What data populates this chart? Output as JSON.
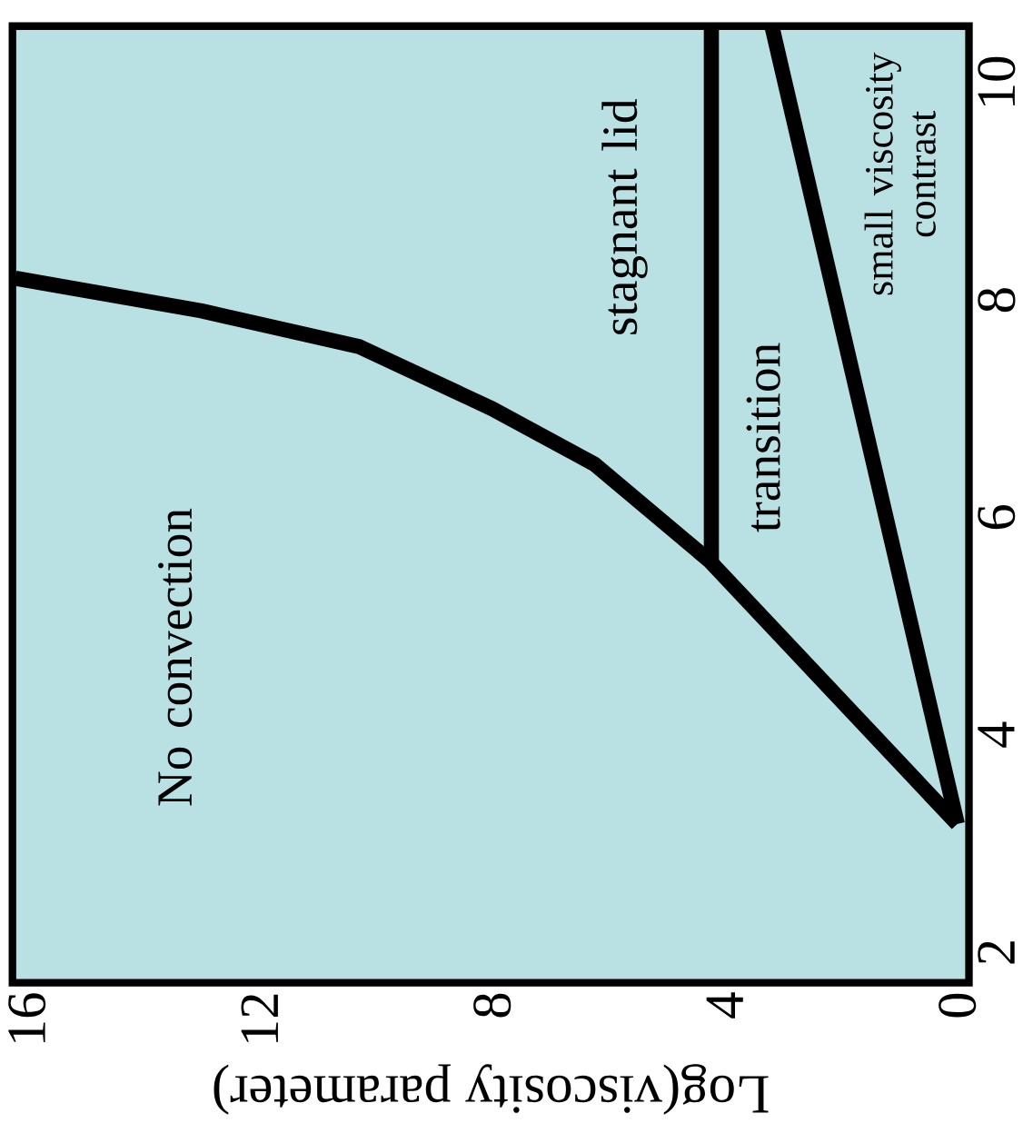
{
  "chart_data": {
    "type": "line",
    "xlabel": "Log(viscosity parameter)",
    "xlim": [
      16.25,
      -0.2
    ],
    "xticks": [
      0,
      4,
      8,
      12,
      16
    ],
    "ylim": [
      1.72,
      10.52
    ],
    "yticks": [
      2,
      4,
      6,
      8,
      10
    ],
    "series": [
      {
        "color": "#000000",
        "x": [
          0,
          4.26,
          6.24,
          8.0,
          10.28,
          13.0,
          16.2
        ],
        "values": [
          3.18,
          5.6,
          6.49,
          7.0,
          7.57,
          7.9,
          8.2
        ]
      },
      {
        "color": "#000000",
        "x": [
          4.23,
          4.23
        ],
        "values": [
          5.6,
          10.52
        ]
      },
      {
        "color": "#000000",
        "x": [
          0,
          3.19
        ],
        "values": [
          3.18,
          10.52
        ]
      }
    ],
    "annotations": [
      "No convection",
      "stagnant lid",
      "transition",
      "small viscosity contrast"
    ],
    "grid": false,
    "marker": "none",
    "line_style": "solid"
  }
}
